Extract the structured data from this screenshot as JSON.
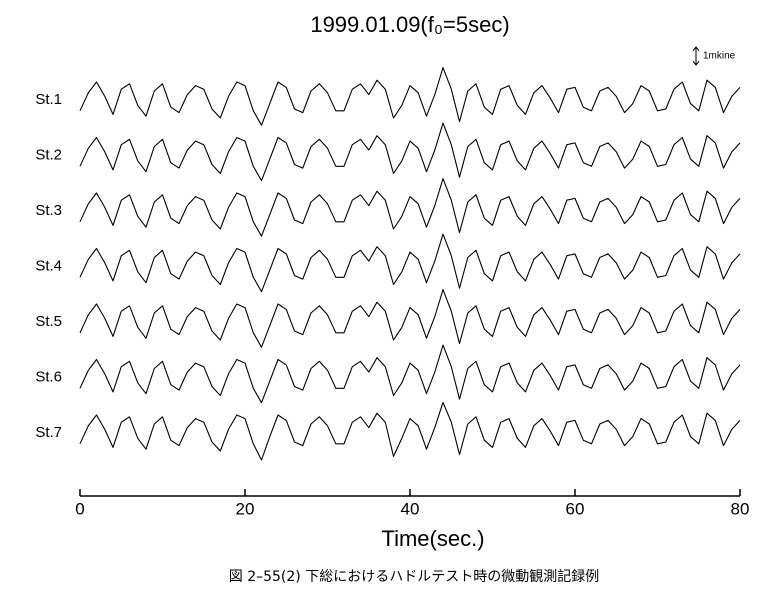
{
  "chart_data": {
    "type": "line",
    "title": "1999.01.09(f₀=5sec)",
    "xlabel": "Time(sec.)",
    "caption": "図 2–55(2)  下総におけるハドルテスト時の微動観測記録例",
    "scale_label": "1mkine",
    "scale_value": 1,
    "xlim": [
      0,
      80
    ],
    "xticks": [
      0,
      20,
      40,
      60,
      80
    ],
    "color": "#000000",
    "x": [
      0,
      1,
      2,
      3,
      4,
      5,
      6,
      7,
      8,
      9,
      10,
      11,
      12,
      13,
      14,
      15,
      16,
      17,
      18,
      19,
      20,
      21,
      22,
      23,
      24,
      25,
      26,
      27,
      28,
      29,
      30,
      31,
      32,
      33,
      34,
      35,
      36,
      37,
      38,
      39,
      40,
      41,
      42,
      43,
      44,
      45,
      46,
      47,
      48,
      49,
      50,
      51,
      52,
      53,
      54,
      55,
      56,
      57,
      58,
      59,
      60,
      61,
      62,
      63,
      64,
      65,
      66,
      67,
      68,
      69,
      70,
      71,
      72,
      73,
      74,
      75,
      76,
      77,
      78,
      79,
      80
    ],
    "series": [
      {
        "name": "St.1",
        "values": [
          -0.6,
          0.4,
          1.0,
          0.2,
          -0.8,
          0.6,
          0.9,
          -0.3,
          -0.9,
          0.5,
          0.9,
          -0.4,
          -0.7,
          0.3,
          0.8,
          0.6,
          -0.5,
          -1.0,
          0.2,
          1.0,
          0.8,
          -0.6,
          -1.4,
          -0.2,
          1.0,
          0.7,
          -0.5,
          -0.7,
          0.5,
          0.9,
          0.4,
          -0.6,
          -0.6,
          0.6,
          0.9,
          0.3,
          1.1,
          0.6,
          -1.0,
          -0.3,
          0.8,
          0.4,
          -0.9,
          0.3,
          1.8,
          0.6,
          -1.2,
          0.5,
          0.9,
          -0.4,
          -0.8,
          0.6,
          0.8,
          -0.3,
          -0.8,
          0.4,
          0.8,
          0.1,
          -0.7,
          0.6,
          0.7,
          -0.4,
          -0.6,
          0.5,
          0.7,
          0.2,
          -0.7,
          -0.2,
          0.8,
          0.5,
          -0.6,
          -0.5,
          0.6,
          1.0,
          -0.2,
          -0.6,
          1.1,
          0.7,
          -0.7,
          0.2,
          0.7
        ]
      },
      {
        "name": "St.2",
        "values": [
          -0.6,
          0.4,
          1.0,
          0.2,
          -0.8,
          0.6,
          0.9,
          -0.3,
          -0.9,
          0.5,
          0.9,
          -0.4,
          -0.7,
          0.3,
          0.8,
          0.6,
          -0.5,
          -1.0,
          0.2,
          1.0,
          0.8,
          -0.6,
          -1.4,
          -0.2,
          1.0,
          0.7,
          -0.5,
          -0.7,
          0.5,
          0.9,
          0.4,
          -0.6,
          -0.6,
          0.6,
          0.9,
          0.3,
          1.1,
          0.6,
          -1.0,
          -0.3,
          0.8,
          0.4,
          -0.9,
          0.3,
          1.8,
          0.6,
          -1.2,
          0.5,
          0.9,
          -0.4,
          -0.8,
          0.6,
          0.8,
          -0.3,
          -0.8,
          0.4,
          0.8,
          0.1,
          -0.7,
          0.6,
          0.7,
          -0.4,
          -0.6,
          0.5,
          0.7,
          0.2,
          -0.7,
          -0.2,
          0.8,
          0.5,
          -0.6,
          -0.5,
          0.6,
          1.0,
          -0.2,
          -0.6,
          1.1,
          0.7,
          -0.7,
          0.2,
          0.7
        ]
      },
      {
        "name": "St.3",
        "values": [
          -0.6,
          0.4,
          1.0,
          0.2,
          -0.8,
          0.6,
          0.9,
          -0.3,
          -0.9,
          0.5,
          0.9,
          -0.4,
          -0.7,
          0.3,
          0.8,
          0.6,
          -0.5,
          -1.0,
          0.2,
          1.0,
          0.8,
          -0.6,
          -1.4,
          -0.2,
          1.0,
          0.7,
          -0.5,
          -0.7,
          0.5,
          0.9,
          0.4,
          -0.6,
          -0.6,
          0.6,
          0.9,
          0.3,
          1.1,
          0.6,
          -1.0,
          -0.3,
          0.8,
          0.4,
          -0.9,
          0.3,
          1.8,
          0.6,
          -1.2,
          0.5,
          0.9,
          -0.4,
          -0.8,
          0.6,
          0.8,
          -0.3,
          -0.8,
          0.4,
          0.8,
          0.1,
          -0.7,
          0.6,
          0.7,
          -0.4,
          -0.6,
          0.5,
          0.7,
          0.2,
          -0.7,
          -0.2,
          0.8,
          0.5,
          -0.6,
          -0.5,
          0.6,
          1.0,
          -0.2,
          -0.6,
          1.1,
          0.7,
          -0.7,
          0.2,
          0.7
        ]
      },
      {
        "name": "St.4",
        "values": [
          -0.6,
          0.4,
          1.0,
          0.2,
          -0.8,
          0.6,
          0.9,
          -0.3,
          -0.9,
          0.5,
          0.9,
          -0.4,
          -0.7,
          0.3,
          0.8,
          0.6,
          -0.5,
          -1.0,
          0.2,
          1.0,
          0.8,
          -0.6,
          -1.4,
          -0.2,
          1.0,
          0.7,
          -0.5,
          -0.7,
          0.5,
          0.9,
          0.4,
          -0.6,
          -0.6,
          0.6,
          0.9,
          0.3,
          1.1,
          0.6,
          -1.0,
          -0.3,
          0.8,
          0.4,
          -0.9,
          0.3,
          1.8,
          0.6,
          -1.2,
          0.5,
          0.9,
          -0.4,
          -0.8,
          0.6,
          0.8,
          -0.3,
          -0.8,
          0.4,
          0.8,
          0.1,
          -0.7,
          0.6,
          0.7,
          -0.4,
          -0.6,
          0.5,
          0.7,
          0.2,
          -0.7,
          -0.2,
          0.8,
          0.5,
          -0.6,
          -0.5,
          0.6,
          1.0,
          -0.2,
          -0.6,
          1.1,
          0.7,
          -0.7,
          0.2,
          0.7
        ]
      },
      {
        "name": "St.5",
        "values": [
          -0.6,
          0.4,
          1.0,
          0.2,
          -0.8,
          0.6,
          0.9,
          -0.3,
          -0.9,
          0.5,
          0.9,
          -0.4,
          -0.7,
          0.3,
          0.8,
          0.6,
          -0.5,
          -1.0,
          0.2,
          1.0,
          0.8,
          -0.6,
          -1.4,
          -0.2,
          1.0,
          0.7,
          -0.5,
          -0.7,
          0.5,
          0.9,
          0.4,
          -0.6,
          -0.6,
          0.6,
          0.9,
          0.3,
          1.1,
          0.6,
          -1.0,
          -0.3,
          0.8,
          0.4,
          -0.9,
          0.3,
          1.8,
          0.6,
          -1.2,
          0.5,
          0.9,
          -0.4,
          -0.8,
          0.6,
          0.8,
          -0.3,
          -0.8,
          0.4,
          0.8,
          0.1,
          -0.7,
          0.6,
          0.7,
          -0.4,
          -0.6,
          0.5,
          0.7,
          0.2,
          -0.7,
          -0.2,
          0.8,
          0.5,
          -0.6,
          -0.5,
          0.6,
          1.0,
          -0.2,
          -0.6,
          1.1,
          0.7,
          -0.7,
          0.2,
          0.7
        ]
      },
      {
        "name": "St.6",
        "values": [
          -0.6,
          0.4,
          1.0,
          0.2,
          -0.8,
          0.6,
          0.9,
          -0.3,
          -0.9,
          0.5,
          0.9,
          -0.4,
          -0.7,
          0.3,
          0.8,
          0.6,
          -0.5,
          -1.0,
          0.2,
          1.0,
          0.8,
          -0.6,
          -1.4,
          -0.2,
          1.0,
          0.7,
          -0.5,
          -0.7,
          0.5,
          0.9,
          0.4,
          -0.6,
          -0.6,
          0.6,
          0.9,
          0.3,
          1.1,
          0.6,
          -1.0,
          -0.3,
          0.8,
          0.4,
          -0.9,
          0.3,
          1.8,
          0.6,
          -1.2,
          0.5,
          0.9,
          -0.4,
          -0.8,
          0.6,
          0.8,
          -0.3,
          -0.8,
          0.4,
          0.8,
          0.1,
          -0.7,
          0.6,
          0.7,
          -0.4,
          -0.6,
          0.5,
          0.7,
          0.2,
          -0.7,
          -0.2,
          0.8,
          0.5,
          -0.6,
          -0.5,
          0.6,
          1.0,
          -0.2,
          -0.6,
          1.1,
          0.7,
          -0.7,
          0.2,
          0.7
        ]
      },
      {
        "name": "St.7",
        "values": [
          -0.6,
          0.4,
          1.0,
          0.2,
          -0.8,
          0.6,
          0.9,
          -0.3,
          -0.9,
          0.5,
          0.9,
          -0.4,
          -0.7,
          0.3,
          0.8,
          0.6,
          -0.5,
          -1.0,
          0.2,
          1.0,
          0.8,
          -0.6,
          -1.5,
          -0.2,
          1.0,
          0.7,
          -0.5,
          -0.7,
          0.5,
          0.9,
          0.4,
          -0.6,
          -0.6,
          0.6,
          0.9,
          0.3,
          1.1,
          0.6,
          -1.3,
          -0.3,
          0.8,
          0.4,
          -0.9,
          0.3,
          1.7,
          0.6,
          -1.2,
          0.5,
          0.9,
          -0.4,
          -0.8,
          0.6,
          0.8,
          -0.3,
          -0.8,
          0.4,
          0.8,
          0.1,
          -0.7,
          0.6,
          0.7,
          -0.4,
          -0.6,
          0.5,
          0.7,
          0.2,
          -0.7,
          -0.2,
          0.8,
          0.5,
          -0.6,
          -0.5,
          0.6,
          1.0,
          -0.2,
          -0.6,
          1.1,
          0.7,
          -0.7,
          0.2,
          0.7
        ]
      }
    ]
  }
}
